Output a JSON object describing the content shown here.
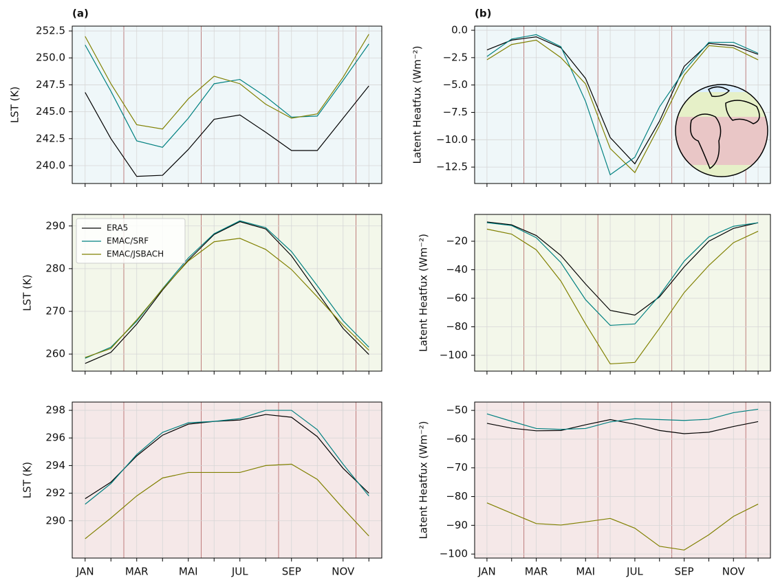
{
  "chart_data": [
    {
      "type": "line",
      "title": "(a)",
      "ylabel": "LST (K)",
      "facecolor": "#eff7f9",
      "ylim": [
        238.34,
        252.95
      ],
      "yticks": [
        {
          "value": 240,
          "label": "240.0"
        },
        242.5,
        {
          "value": 245,
          "label": "245.0"
        },
        247.5,
        {
          "value": 250,
          "label": "250.0"
        },
        252.5
      ],
      "grid": true,
      "series": [
        {
          "color": "#000000",
          "values": [
            246.8,
            242.5,
            239.0,
            239.1,
            241.5,
            244.3,
            244.7,
            243.1,
            241.4,
            241.4,
            244.4,
            247.4
          ]
        },
        {
          "color": "#008080",
          "values": [
            251.2,
            246.9,
            242.3,
            241.7,
            244.4,
            247.6,
            248.0,
            246.4,
            244.5,
            244.6,
            247.9,
            251.3
          ]
        },
        {
          "color": "#808000",
          "values": [
            252.0,
            247.6,
            243.8,
            243.4,
            246.2,
            248.3,
            247.6,
            245.7,
            244.4,
            244.8,
            248.2,
            252.2
          ]
        }
      ]
    },
    {
      "type": "line",
      "title": "(b)",
      "ylabel": "Latent Heatfux (Wm⁻²)",
      "facecolor": "#eff7f9",
      "ylim": [
        -14.0,
        0.38
      ],
      "yticks": [
        {
          "value": -12.5,
          "label": "−12.5"
        },
        {
          "value": -10,
          "label": "−10.0"
        },
        {
          "value": -7.5,
          "label": "−7.5"
        },
        {
          "value": -5,
          "label": "−5.0"
        },
        {
          "value": -2.5,
          "label": "−2.5"
        },
        {
          "value": 0,
          "label": "0.0"
        }
      ],
      "grid": true,
      "series": [
        {
          "color": "#000000",
          "values": [
            -1.8,
            -0.9,
            -0.6,
            -1.6,
            -4.4,
            -9.8,
            -12.2,
            -8.3,
            -3.3,
            -1.2,
            -1.4,
            -2.2
          ]
        },
        {
          "color": "#008080",
          "values": [
            -2.4,
            -0.8,
            -0.4,
            -1.5,
            -6.5,
            -13.2,
            -11.6,
            -7.0,
            -3.7,
            -1.1,
            -1.1,
            -2.1
          ]
        },
        {
          "color": "#808000",
          "values": [
            -2.7,
            -1.3,
            -0.9,
            -2.5,
            -4.9,
            -10.8,
            -13.0,
            -8.7,
            -4.1,
            -1.4,
            -1.6,
            -2.7
          ]
        }
      ]
    },
    {
      "type": "line",
      "ylabel": "LST (K)",
      "facecolor": "#f3f7ea",
      "ylim": [
        256.0,
        292.7
      ],
      "yticks": [
        260,
        270,
        280,
        290
      ],
      "grid": true,
      "legend": "upper left",
      "series": [
        {
          "name": "ERA5",
          "color": "#000000",
          "values": [
            257.8,
            260.4,
            267.0,
            275.0,
            282.0,
            288.0,
            291.0,
            289.3,
            283.0,
            274.5,
            266.0,
            259.9
          ]
        },
        {
          "name": "EMAC/SRF",
          "color": "#008080",
          "values": [
            259.0,
            261.6,
            267.7,
            275.3,
            282.5,
            288.2,
            291.2,
            289.6,
            284.0,
            276.0,
            267.8,
            261.6
          ]
        },
        {
          "name": "EMAC/JSBACH",
          "color": "#808000",
          "values": [
            259.2,
            261.3,
            268.0,
            275.2,
            281.8,
            286.3,
            287.1,
            284.5,
            279.8,
            273.4,
            266.8,
            260.9
          ]
        }
      ]
    },
    {
      "type": "line",
      "ylabel": "Latent Heatfux (Wm⁻²)",
      "facecolor": "#f3f7ea",
      "ylim": [
        -111.1,
        -1.2
      ],
      "yticks": [
        {
          "value": -100,
          "label": "−100"
        },
        {
          "value": -80,
          "label": "−80"
        },
        {
          "value": -60,
          "label": "−60"
        },
        {
          "value": -40,
          "label": "−40"
        },
        {
          "value": -20,
          "label": "−20"
        }
      ],
      "grid": true,
      "series": [
        {
          "color": "#000000",
          "values": [
            -6.5,
            -8.5,
            -16,
            -30,
            -50,
            -68.5,
            -71.8,
            -59,
            -38,
            -20,
            -11,
            -7
          ]
        },
        {
          "color": "#008080",
          "values": [
            -7,
            -9,
            -17.5,
            -35,
            -61,
            -79,
            -78,
            -58,
            -34,
            -17,
            -9.5,
            -7
          ]
        },
        {
          "color": "#808000",
          "values": [
            -11.5,
            -15,
            -26,
            -48,
            -78,
            -106,
            -105,
            -81,
            -56,
            -37,
            -21,
            -13
          ]
        }
      ]
    },
    {
      "type": "line",
      "ylabel": "LST (K)",
      "facecolor": "#f5e8e8",
      "categories": [
        "JAN",
        null,
        "MAR",
        null,
        "MAI",
        null,
        "JUL",
        null,
        "SEP",
        null,
        "NOV",
        null
      ],
      "ylim": [
        287.3,
        298.6
      ],
      "yticks": [
        290,
        292,
        294,
        296,
        298
      ],
      "grid": true,
      "series": [
        {
          "color": "#000000",
          "values": [
            291.6,
            292.8,
            294.7,
            296.2,
            297.0,
            297.2,
            297.3,
            297.7,
            297.5,
            296.1,
            293.8,
            292.0
          ]
        },
        {
          "color": "#008080",
          "values": [
            291.2,
            292.7,
            294.8,
            296.4,
            297.1,
            297.2,
            297.4,
            298.0,
            298.0,
            296.6,
            294.1,
            291.8
          ]
        },
        {
          "color": "#808000",
          "values": [
            288.7,
            290.2,
            291.8,
            293.1,
            293.5,
            293.5,
            293.5,
            294.0,
            294.1,
            293.0,
            290.9,
            288.9
          ]
        }
      ]
    },
    {
      "type": "line",
      "ylabel": "Latent Heatfux (Wm⁻²)",
      "facecolor": "#f5e8e8",
      "categories": [
        "JAN",
        null,
        "MAR",
        null,
        "MAI",
        null,
        "JUL",
        null,
        "SEP",
        null,
        "NOV",
        null
      ],
      "ylim": [
        -101.4,
        -47.1
      ],
      "yticks": [
        {
          "value": -100,
          "label": "−100"
        },
        {
          "value": -90,
          "label": "−90"
        },
        {
          "value": -80,
          "label": "−80"
        },
        {
          "value": -70,
          "label": "−70"
        },
        {
          "value": -60,
          "label": "−60"
        },
        {
          "value": -50,
          "label": "−50"
        }
      ],
      "grid": true,
      "series": [
        {
          "color": "#000000",
          "values": [
            -54.5,
            -56.2,
            -57.1,
            -57.0,
            -55.0,
            -53.2,
            -54.8,
            -57.0,
            -58.1,
            -57.6,
            -55.6,
            -53.9
          ]
        },
        {
          "color": "#008080",
          "values": [
            -51.2,
            -53.8,
            -56.3,
            -56.6,
            -56.3,
            -54.0,
            -52.9,
            -53.2,
            -53.5,
            -53.1,
            -50.8,
            -49.6
          ]
        },
        {
          "color": "#808000",
          "values": [
            -82.2,
            -85.8,
            -89.4,
            -89.9,
            -88.8,
            -87.6,
            -91.0,
            -97.3,
            -98.6,
            -93.3,
            -86.9,
            -82.6
          ]
        }
      ]
    }
  ]
}
